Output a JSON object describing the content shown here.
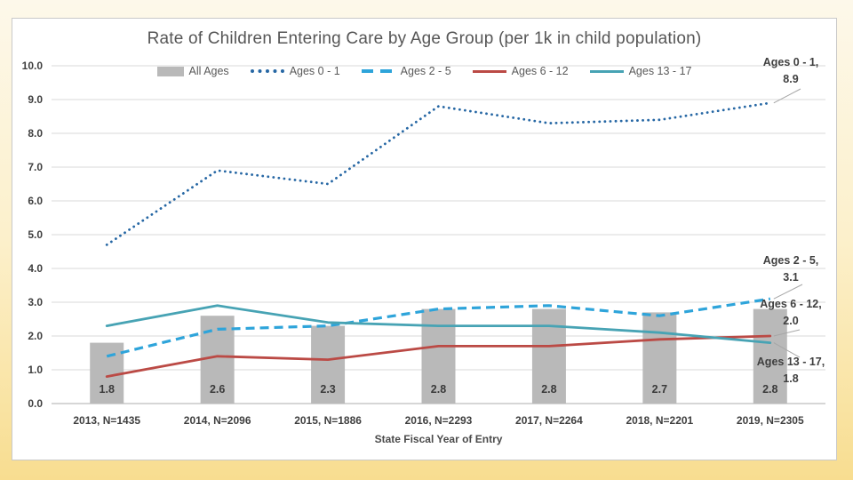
{
  "slide": {
    "title": "Rate of Children Entering Care by Age Group (per 1k in child population)"
  },
  "chart_data": {
    "type": "bar+line combo",
    "title": "Rate of Children Entering Care by Age Group (per 1k in child population)",
    "xlabel": "State Fiscal Year of Entry",
    "ylabel": "",
    "ylim": [
      0,
      10
    ],
    "grid": "horizontal",
    "legend_position": "top-center",
    "y_ticks": [
      "0.0",
      "1.0",
      "2.0",
      "3.0",
      "4.0",
      "5.0",
      "6.0",
      "7.0",
      "8.0",
      "9.0",
      "10.0"
    ],
    "categories": [
      "2013, N=1435",
      "2014, N=2096",
      "2015, N=1886",
      "2016, N=2293",
      "2017, N=2264",
      "2018, N=2201",
      "2019, N=2305"
    ],
    "legend": [
      "All Ages",
      "Ages 0 - 1",
      "Ages 2 - 5",
      "Ages 6 - 12",
      "Ages 13 - 17"
    ],
    "bar_series": {
      "name": "All Ages",
      "color": "#b9b9b9",
      "values": [
        1.8,
        2.6,
        2.3,
        2.8,
        2.8,
        2.7,
        2.8
      ],
      "labels": [
        "1.8",
        "2.6",
        "2.3",
        "2.8",
        "2.8",
        "2.7",
        "2.8"
      ]
    },
    "line_series": [
      {
        "name": "Ages 0 - 1",
        "style": "dotted",
        "color": "#2667a4",
        "values": [
          4.7,
          6.9,
          6.5,
          8.8,
          8.3,
          8.4,
          8.9
        ]
      },
      {
        "name": "Ages 2 - 5",
        "style": "dashed",
        "color": "#2ea4da",
        "values": [
          1.4,
          2.2,
          2.3,
          2.8,
          2.9,
          2.6,
          3.1
        ]
      },
      {
        "name": "Ages 6 - 12",
        "style": "solid",
        "color": "#bb4a45",
        "values": [
          0.8,
          1.4,
          1.3,
          1.7,
          1.7,
          1.9,
          2.0
        ]
      },
      {
        "name": "Ages 13 - 17",
        "style": "solid",
        "color": "#47a3b4",
        "values": [
          2.3,
          2.9,
          2.4,
          2.3,
          2.3,
          2.1,
          1.8
        ]
      }
    ],
    "annotations": [
      {
        "line1": "Ages 0 - 1,",
        "line2": "8.9"
      },
      {
        "line1": "Ages 2 - 5,",
        "line2": "3.1"
      },
      {
        "line1": "Ages 6 - 12,",
        "line2": "2.0"
      },
      {
        "line1": "Ages 13 - 17,",
        "line2": "1.8"
      }
    ],
    "colors": {
      "bar": "#b9b9b9",
      "gridline": "#d9d9d9",
      "axis_line": "#bdbdbd",
      "leader_line": "#a6a6a6",
      "text": "#3f3f3f",
      "title_text": "#565656"
    }
  }
}
